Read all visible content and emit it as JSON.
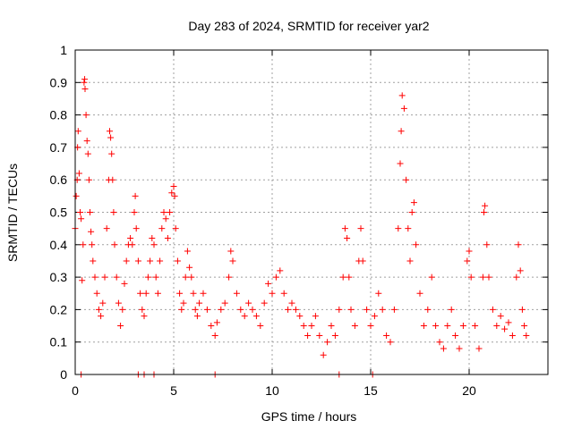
{
  "chart_data": {
    "type": "scatter",
    "title": "Day 283 of 2024, SRMTID for receiver yar2",
    "xlabel": "GPS time / hours",
    "ylabel": "SRMTID / TECUs",
    "xlim": [
      0,
      24
    ],
    "ylim": [
      0,
      1
    ],
    "x_ticks": [
      0,
      5,
      10,
      15,
      20
    ],
    "x_tick_labels": [
      "0",
      "5",
      "10",
      "15",
      "20"
    ],
    "y_ticks": [
      0,
      0.1,
      0.2,
      0.3,
      0.4,
      0.5,
      0.6,
      0.7,
      0.8,
      0.9,
      1
    ],
    "y_tick_labels": [
      "0",
      "0.1",
      "0.2",
      "0.3",
      "0.4",
      "0.5",
      "0.6",
      "0.7",
      "0.8",
      "0.9",
      "1"
    ],
    "grid": true,
    "marker": "plus",
    "series": [
      {
        "name": "SRMTID",
        "color": "#ff0000",
        "points": [
          [
            0.0,
            0.45
          ],
          [
            0.05,
            0.55
          ],
          [
            0.1,
            0.6
          ],
          [
            0.12,
            0.7
          ],
          [
            0.15,
            0.75
          ],
          [
            0.2,
            0.62
          ],
          [
            0.25,
            0.5
          ],
          [
            0.3,
            0.48
          ],
          [
            0.35,
            0.29
          ],
          [
            0.4,
            0.4
          ],
          [
            0.45,
            0.9
          ],
          [
            0.48,
            0.91
          ],
          [
            0.5,
            0.88
          ],
          [
            0.55,
            0.8
          ],
          [
            0.6,
            0.72
          ],
          [
            0.65,
            0.68
          ],
          [
            0.7,
            0.6
          ],
          [
            0.75,
            0.5
          ],
          [
            0.8,
            0.44
          ],
          [
            0.85,
            0.4
          ],
          [
            0.9,
            0.35
          ],
          [
            1.0,
            0.3
          ],
          [
            1.1,
            0.25
          ],
          [
            1.2,
            0.2
          ],
          [
            1.3,
            0.18
          ],
          [
            1.4,
            0.22
          ],
          [
            1.5,
            0.3
          ],
          [
            1.6,
            0.45
          ],
          [
            1.7,
            0.6
          ],
          [
            1.75,
            0.75
          ],
          [
            1.8,
            0.73
          ],
          [
            1.85,
            0.68
          ],
          [
            1.9,
            0.6
          ],
          [
            1.95,
            0.5
          ],
          [
            2.0,
            0.4
          ],
          [
            2.1,
            0.3
          ],
          [
            2.2,
            0.22
          ],
          [
            2.3,
            0.15
          ],
          [
            2.4,
            0.2
          ],
          [
            2.5,
            0.28
          ],
          [
            2.6,
            0.35
          ],
          [
            2.7,
            0.4
          ],
          [
            2.8,
            0.42
          ],
          [
            2.9,
            0.4
          ],
          [
            3.0,
            0.5
          ],
          [
            3.05,
            0.55
          ],
          [
            3.1,
            0.45
          ],
          [
            3.2,
            0.35
          ],
          [
            3.3,
            0.25
          ],
          [
            3.4,
            0.2
          ],
          [
            3.5,
            0.18
          ],
          [
            3.6,
            0.25
          ],
          [
            3.7,
            0.3
          ],
          [
            3.8,
            0.35
          ],
          [
            3.9,
            0.42
          ],
          [
            4.0,
            0.4
          ],
          [
            4.1,
            0.3
          ],
          [
            4.2,
            0.25
          ],
          [
            4.3,
            0.35
          ],
          [
            4.4,
            0.45
          ],
          [
            4.5,
            0.5
          ],
          [
            4.6,
            0.48
          ],
          [
            4.7,
            0.42
          ],
          [
            4.8,
            0.5
          ],
          [
            4.9,
            0.56
          ],
          [
            5.0,
            0.58
          ],
          [
            5.05,
            0.55
          ],
          [
            5.1,
            0.45
          ],
          [
            5.2,
            0.35
          ],
          [
            5.3,
            0.25
          ],
          [
            5.4,
            0.2
          ],
          [
            5.5,
            0.22
          ],
          [
            5.6,
            0.3
          ],
          [
            5.7,
            0.38
          ],
          [
            5.8,
            0.33
          ],
          [
            5.9,
            0.3
          ],
          [
            6.0,
            0.25
          ],
          [
            6.1,
            0.2
          ],
          [
            6.2,
            0.18
          ],
          [
            6.3,
            0.22
          ],
          [
            6.5,
            0.25
          ],
          [
            6.7,
            0.2
          ],
          [
            6.9,
            0.15
          ],
          [
            7.1,
            0.12
          ],
          [
            7.2,
            0.16
          ],
          [
            7.4,
            0.2
          ],
          [
            7.6,
            0.22
          ],
          [
            7.8,
            0.3
          ],
          [
            7.9,
            0.38
          ],
          [
            8.0,
            0.35
          ],
          [
            8.2,
            0.25
          ],
          [
            8.4,
            0.2
          ],
          [
            8.6,
            0.18
          ],
          [
            8.8,
            0.22
          ],
          [
            9.0,
            0.2
          ],
          [
            9.2,
            0.18
          ],
          [
            9.4,
            0.15
          ],
          [
            9.6,
            0.22
          ],
          [
            9.8,
            0.28
          ],
          [
            10.0,
            0.25
          ],
          [
            10.2,
            0.3
          ],
          [
            10.4,
            0.32
          ],
          [
            10.6,
            0.25
          ],
          [
            10.8,
            0.2
          ],
          [
            11.0,
            0.22
          ],
          [
            11.2,
            0.2
          ],
          [
            11.4,
            0.18
          ],
          [
            11.6,
            0.15
          ],
          [
            11.8,
            0.12
          ],
          [
            12.0,
            0.15
          ],
          [
            12.2,
            0.18
          ],
          [
            12.4,
            0.12
          ],
          [
            12.6,
            0.06
          ],
          [
            12.8,
            0.1
          ],
          [
            13.0,
            0.15
          ],
          [
            13.2,
            0.12
          ],
          [
            13.4,
            0.2
          ],
          [
            13.6,
            0.3
          ],
          [
            13.7,
            0.45
          ],
          [
            13.8,
            0.42
          ],
          [
            13.9,
            0.3
          ],
          [
            14.0,
            0.2
          ],
          [
            14.2,
            0.15
          ],
          [
            14.4,
            0.35
          ],
          [
            14.5,
            0.45
          ],
          [
            14.6,
            0.35
          ],
          [
            14.8,
            0.2
          ],
          [
            15.0,
            0.15
          ],
          [
            15.2,
            0.18
          ],
          [
            15.4,
            0.25
          ],
          [
            15.6,
            0.2
          ],
          [
            15.8,
            0.12
          ],
          [
            16.0,
            0.1
          ],
          [
            16.2,
            0.2
          ],
          [
            16.4,
            0.45
          ],
          [
            16.5,
            0.65
          ],
          [
            16.55,
            0.75
          ],
          [
            16.6,
            0.86
          ],
          [
            16.7,
            0.82
          ],
          [
            16.8,
            0.6
          ],
          [
            16.9,
            0.45
          ],
          [
            17.0,
            0.35
          ],
          [
            17.1,
            0.5
          ],
          [
            17.2,
            0.53
          ],
          [
            17.3,
            0.4
          ],
          [
            17.5,
            0.25
          ],
          [
            17.7,
            0.15
          ],
          [
            17.9,
            0.2
          ],
          [
            18.1,
            0.3
          ],
          [
            18.3,
            0.15
          ],
          [
            18.5,
            0.1
          ],
          [
            18.7,
            0.08
          ],
          [
            18.9,
            0.15
          ],
          [
            19.1,
            0.2
          ],
          [
            19.3,
            0.12
          ],
          [
            19.5,
            0.08
          ],
          [
            19.7,
            0.15
          ],
          [
            19.9,
            0.35
          ],
          [
            20.0,
            0.38
          ],
          [
            20.1,
            0.3
          ],
          [
            20.3,
            0.15
          ],
          [
            20.5,
            0.08
          ],
          [
            20.7,
            0.3
          ],
          [
            20.75,
            0.5
          ],
          [
            20.8,
            0.52
          ],
          [
            20.9,
            0.4
          ],
          [
            21.0,
            0.3
          ],
          [
            21.2,
            0.2
          ],
          [
            21.4,
            0.15
          ],
          [
            21.6,
            0.18
          ],
          [
            21.8,
            0.14
          ],
          [
            22.0,
            0.16
          ],
          [
            22.2,
            0.12
          ],
          [
            22.4,
            0.3
          ],
          [
            22.5,
            0.4
          ],
          [
            22.6,
            0.32
          ],
          [
            22.7,
            0.2
          ],
          [
            22.8,
            0.15
          ],
          [
            22.9,
            0.12
          ]
        ],
        "zero_values_x": [
          0.3,
          3.2,
          3.5,
          4.0,
          7.1,
          13.4,
          15.1
        ]
      }
    ]
  }
}
